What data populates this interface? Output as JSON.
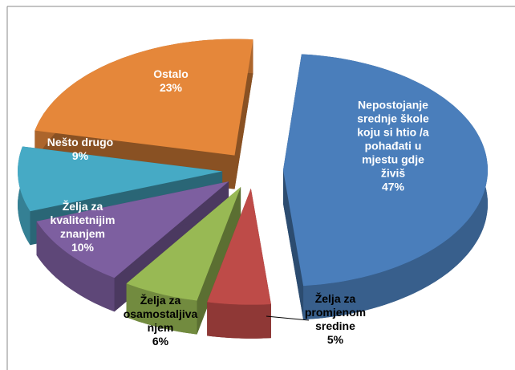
{
  "chart_data": {
    "type": "pie",
    "categories": [
      "Nepostojanje\nsrednje škole\nkoju si htio /a\npohađati u\nmjestu gdje\nživiš",
      "Želja za\npromjenom\nsredine",
      "Želja za\nosamostaljiva\nnjem",
      "Želja za\nkvalitetnijim\nznanjem",
      "Nešto drugo",
      "Ostalo"
    ],
    "values": [
      47,
      5,
      6,
      10,
      9,
      23
    ],
    "value_labels": [
      "47%",
      "5%",
      "6%",
      "10%",
      "9%",
      "23%"
    ],
    "colors": [
      "#4a7ebb",
      "#be4b48",
      "#98b954",
      "#7d5fa0",
      "#46aac5",
      "#e5873a"
    ]
  }
}
